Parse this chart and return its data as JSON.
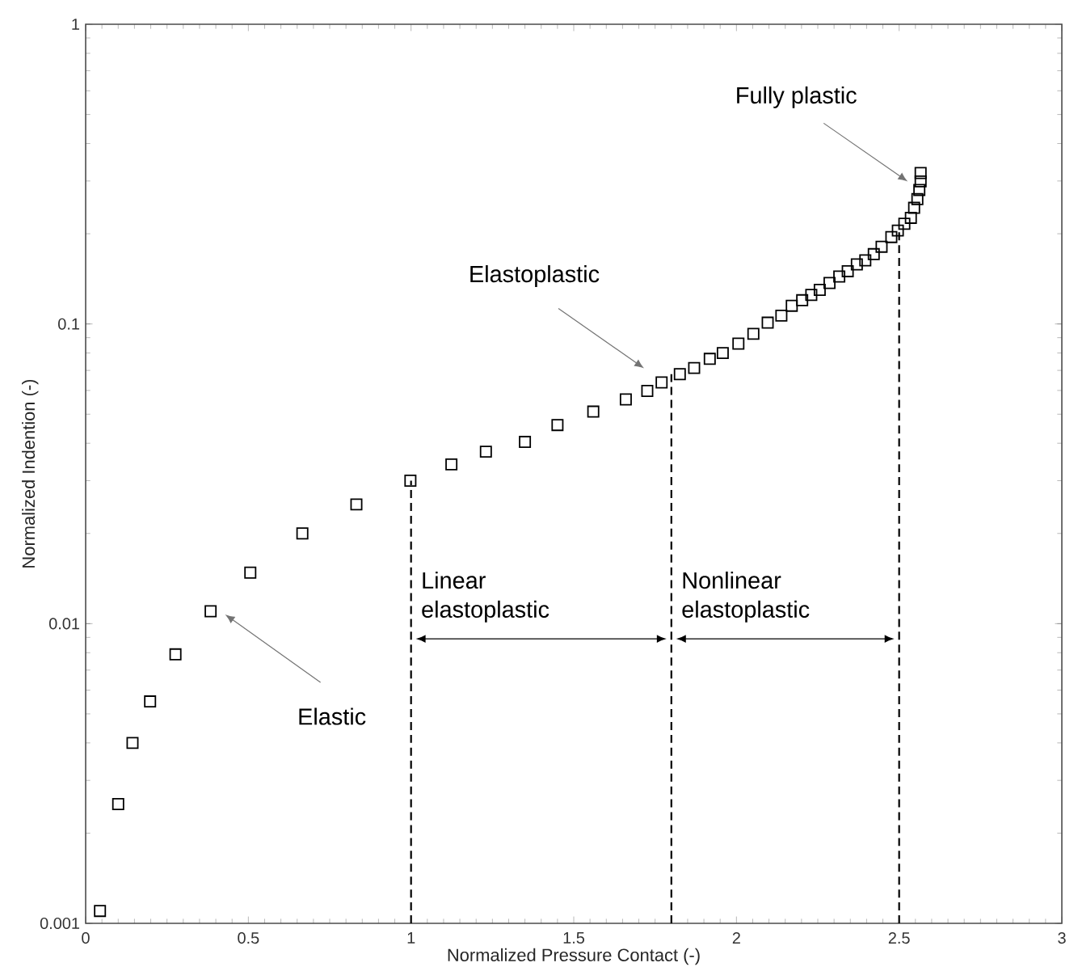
{
  "chart_data": {
    "type": "scatter",
    "xlabel": "Normalized Pressure Contact (-)",
    "ylabel": "Normalized Indention (-)",
    "log": "y",
    "marker": "square",
    "xlim": [
      0,
      3
    ],
    "ylim": [
      0.001,
      1
    ],
    "xticks": [
      0,
      0.5,
      1,
      1.5,
      2,
      2.5,
      3
    ],
    "yticks": [
      0.001,
      0.01,
      0.1,
      1
    ],
    "series": [
      {
        "color": "#000000",
        "x": [
          0.044,
          0.1,
          0.144,
          0.198,
          0.276,
          0.384,
          0.506,
          0.666,
          0.832,
          0.998,
          1.124,
          1.23,
          1.35,
          1.45,
          1.56,
          1.66,
          1.726,
          1.77,
          1.826,
          1.87,
          1.918,
          1.958,
          2.006,
          2.052,
          2.096,
          2.138,
          2.17,
          2.202,
          2.23,
          2.256,
          2.286,
          2.316,
          2.342,
          2.37,
          2.396,
          2.422,
          2.446,
          2.476,
          2.496,
          2.516,
          2.536,
          2.546,
          2.556,
          2.562,
          2.566,
          2.566
        ],
        "values": [
          0.0011,
          0.0025,
          0.004,
          0.0055,
          0.0079,
          0.011,
          0.0148,
          0.02,
          0.025,
          0.03,
          0.034,
          0.0375,
          0.0404,
          0.046,
          0.051,
          0.056,
          0.0598,
          0.0638,
          0.068,
          0.0713,
          0.0765,
          0.08,
          0.086,
          0.0927,
          0.101,
          0.1066,
          0.115,
          0.12,
          0.125,
          0.13,
          0.137,
          0.144,
          0.15,
          0.158,
          0.163,
          0.171,
          0.181,
          0.195,
          0.205,
          0.216,
          0.226,
          0.244,
          0.261,
          0.28,
          0.299,
          0.319
        ]
      }
    ],
    "ref_lines": [
      {
        "axis": "x",
        "value": 1,
        "line_style": "dashed",
        "color": "#000000"
      },
      {
        "axis": "x",
        "value": 1.8,
        "line_style": "dashed",
        "color": "#000000"
      },
      {
        "axis": "x",
        "value": 2.5,
        "line_style": "dashed",
        "color": "#000000"
      }
    ],
    "annotations": [
      "Fully plastic",
      "Elastoplastic",
      "Elastic",
      "Linear elastoplastic",
      "Nonlinear elastoplastic"
    ]
  }
}
